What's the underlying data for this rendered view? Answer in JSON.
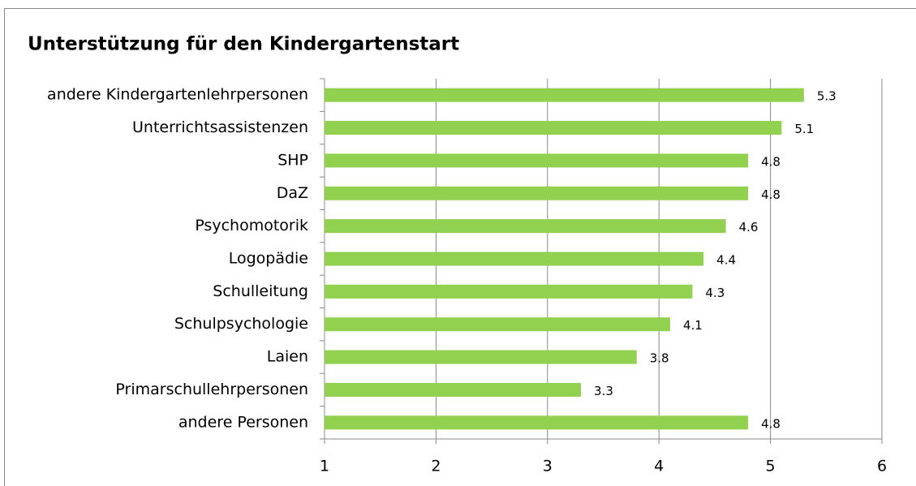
{
  "chart_data": {
    "type": "bar",
    "orientation": "horizontal",
    "title": "Unterstützung für den Kindergartenstart",
    "categories": [
      "andere Kindergartenlehrpersonen",
      "Unterrichtsassistenzen",
      "SHP",
      "DaZ",
      "Psychomotorik",
      "Logopädie",
      "Schulleitung",
      "Schulpsychologie",
      "Laien",
      "Primarschullehrpersonen",
      "andere Personen"
    ],
    "values": [
      5.3,
      5.1,
      4.8,
      4.8,
      4.6,
      4.4,
      4.3,
      4.1,
      3.8,
      3.3,
      4.8
    ],
    "color": "#92d050",
    "xlim": [
      1,
      6
    ],
    "xticks": [
      1,
      2,
      3,
      4,
      5,
      6
    ],
    "grid": true
  }
}
